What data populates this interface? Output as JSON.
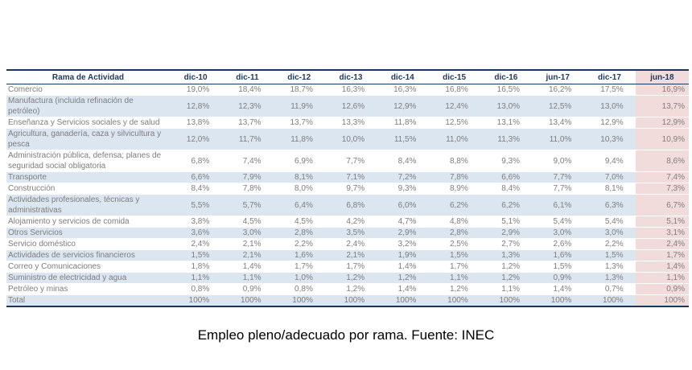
{
  "caption": "Empleo pleno/adecuado por rama. Fuente: INEC",
  "colors": {
    "band_blue": "#dce6f1",
    "highlight_pink": "#f2dcdb",
    "border_navy": "#17375d",
    "header_text": "#1f3a5e",
    "body_text": "#7d7d7d",
    "caption_text": "#000000"
  },
  "chart_data": {
    "type": "table",
    "title": "Empleo pleno/adecuado por rama. Fuente: INEC",
    "source": "INEC",
    "highlighted_column": "jun-18",
    "columns": [
      "Rama de Actividad",
      "dic-10",
      "dic-11",
      "dic-12",
      "dic-13",
      "dic-14",
      "dic-15",
      "dic-16",
      "jun-17",
      "dic-17",
      "jun-18"
    ],
    "rows": [
      {
        "label": "Comercio",
        "values": [
          "19,0%",
          "18,4%",
          "18,7%",
          "16,3%",
          "16,3%",
          "16,8%",
          "16,5%",
          "16,2%",
          "17,5%",
          "16,9%"
        ]
      },
      {
        "label": "Manufactura (incluida refinación de petróleo)",
        "values": [
          "12,8%",
          "12,3%",
          "11,9%",
          "12,6%",
          "12,9%",
          "12,4%",
          "13,0%",
          "12,5%",
          "13,0%",
          "13,7%"
        ]
      },
      {
        "label": "Enseñanza y Servicios sociales y de salud",
        "values": [
          "13,8%",
          "13,7%",
          "13,7%",
          "13,3%",
          "11,8%",
          "12,5%",
          "13,1%",
          "13,4%",
          "12,9%",
          "12,9%"
        ]
      },
      {
        "label": "Agricultura, ganadería, caza y silvicultura y pesca",
        "values": [
          "12,0%",
          "11,7%",
          "11,8%",
          "10,0%",
          "11,5%",
          "11,0%",
          "11,3%",
          "11,0%",
          "10,3%",
          "10,9%"
        ]
      },
      {
        "label": "Administración pública, defensa; planes de seguridad social obligatoria",
        "values": [
          "6,8%",
          "7,4%",
          "6,9%",
          "7,7%",
          "8,4%",
          "8,8%",
          "9,3%",
          "9,0%",
          "9,4%",
          "8,6%"
        ]
      },
      {
        "label": "Transporte",
        "values": [
          "6,6%",
          "7,9%",
          "8,1%",
          "7,1%",
          "7,2%",
          "7,8%",
          "6,6%",
          "7,7%",
          "7,0%",
          "7,4%"
        ]
      },
      {
        "label": "Construcción",
        "values": [
          "8,4%",
          "7,8%",
          "8,0%",
          "9,7%",
          "9,3%",
          "8,9%",
          "8,4%",
          "7,7%",
          "8,1%",
          "7,3%"
        ]
      },
      {
        "label": "Actividades profesionales, técnicas y administrativas",
        "values": [
          "5,5%",
          "5,7%",
          "6,4%",
          "6,8%",
          "6,0%",
          "6,2%",
          "6,2%",
          "6,1%",
          "6,3%",
          "6,7%"
        ]
      },
      {
        "label": "Alojamiento y servicios de comida",
        "values": [
          "3,8%",
          "4,5%",
          "4,5%",
          "4,2%",
          "4,7%",
          "4,8%",
          "5,1%",
          "5,4%",
          "5,4%",
          "5,1%"
        ]
      },
      {
        "label": "Otros Servicios",
        "values": [
          "3,6%",
          "3,0%",
          "2,8%",
          "3,5%",
          "2,9%",
          "2,8%",
          "2,9%",
          "3,0%",
          "3,0%",
          "3,1%"
        ]
      },
      {
        "label": "Servicio doméstico",
        "values": [
          "2,4%",
          "2,1%",
          "2,2%",
          "2,4%",
          "3,2%",
          "2,5%",
          "2,7%",
          "2,6%",
          "2,2%",
          "2,4%"
        ]
      },
      {
        "label": "Actividades de servicios financieros",
        "values": [
          "1,5%",
          "2,1%",
          "1,6%",
          "2,1%",
          "1,9%",
          "1,5%",
          "1,3%",
          "1,6%",
          "1,5%",
          "1,7%"
        ]
      },
      {
        "label": "Correo y Comunicaciones",
        "values": [
          "1,8%",
          "1,4%",
          "1,7%",
          "1,7%",
          "1,4%",
          "1,7%",
          "1,2%",
          "1,5%",
          "1,3%",
          "1,4%"
        ]
      },
      {
        "label": "Suministro de electricidad y agua",
        "values": [
          "1,1%",
          "1,1%",
          "1,0%",
          "1,2%",
          "1,2%",
          "1,1%",
          "1,2%",
          "0,9%",
          "1,3%",
          "1,1%"
        ]
      },
      {
        "label": "Petróleo y minas",
        "values": [
          "0,8%",
          "0,9%",
          "0,8%",
          "1,2%",
          "1,4%",
          "1,2%",
          "1,1%",
          "1,4%",
          "0,7%",
          "0,9%"
        ]
      },
      {
        "label": "Total",
        "values": [
          "100%",
          "100%",
          "100%",
          "100%",
          "100%",
          "100%",
          "100%",
          "100%",
          "100%",
          "100%"
        ]
      }
    ]
  }
}
